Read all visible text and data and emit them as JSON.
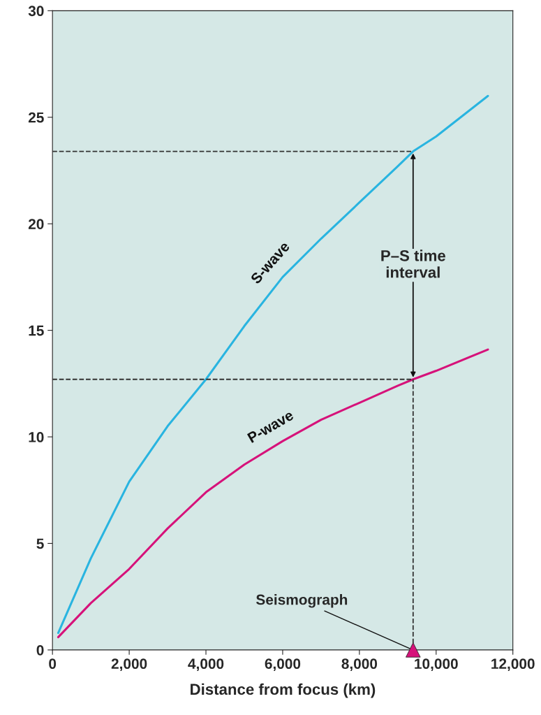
{
  "chart_data": {
    "type": "line",
    "xlabel": "Distance from focus (km)",
    "xlim": [
      0,
      12000
    ],
    "ylim": [
      0,
      30
    ],
    "xticks": [
      0,
      {
        "value": 2000,
        "label": "2,000"
      },
      {
        "value": 4000,
        "label": "4,000"
      },
      {
        "value": 6000,
        "label": "6,000"
      },
      {
        "value": 8000,
        "label": "8,000"
      },
      {
        "value": 10000,
        "label": "10,000"
      },
      {
        "value": 12000,
        "label": "12,000"
      }
    ],
    "yticks": [
      0,
      5,
      10,
      15,
      20,
      25,
      30
    ],
    "grid": false,
    "line_style": "solid",
    "marker": "none",
    "series": [
      {
        "name": "S-wave",
        "color": "#29b4e0",
        "x": [
          150,
          1000,
          2000,
          3000,
          4000,
          5000,
          6000,
          7000,
          8000,
          9000,
          9400,
          10000,
          11350
        ],
        "values": [
          0.8,
          4.3,
          7.9,
          10.5,
          12.7,
          15.2,
          17.5,
          19.3,
          21.0,
          22.7,
          23.4,
          24.1,
          26.0
        ]
      },
      {
        "name": "P-wave",
        "color": "#d6127a",
        "x": [
          150,
          1000,
          2000,
          3000,
          4000,
          5000,
          6000,
          7000,
          8000,
          9000,
          9400,
          10000,
          11350
        ],
        "values": [
          0.6,
          2.2,
          3.8,
          5.7,
          7.4,
          8.7,
          9.8,
          10.8,
          11.6,
          12.4,
          12.7,
          13.1,
          14.1
        ]
      },
      {
        "type": "scatter",
        "color": "#d6127a",
        "marker": "triangle",
        "x": [
          9400
        ],
        "values": [
          0
        ]
      }
    ],
    "ref_lines": [
      {
        "axis": "y",
        "value": 23.4,
        "color": "#333333",
        "line_style": "dashed"
      },
      {
        "axis": "y",
        "value": 12.7,
        "color": "#333333",
        "line_style": "dashed"
      },
      {
        "axis": "x",
        "value": 9400,
        "color": "#333333",
        "line_style": "dashed"
      }
    ],
    "annotations": [
      "P–S time\ninterval",
      {
        "text": "Seismograph",
        "x": 9400,
        "y": 0
      }
    ]
  }
}
